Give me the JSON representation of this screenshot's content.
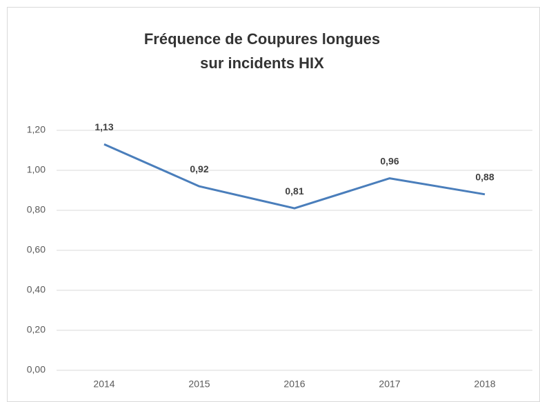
{
  "chart_data": {
    "type": "line",
    "title": [
      "Fréquence de Coupures longues",
      "sur incidents HIX"
    ],
    "categories": [
      "2014",
      "2015",
      "2016",
      "2017",
      "2018"
    ],
    "series": [
      {
        "name": "Fréquence",
        "color": "#4a7ebb",
        "values": [
          1.13,
          0.92,
          0.81,
          0.96,
          0.88
        ],
        "value_labels": [
          "1,13",
          "0,92",
          "0,81",
          "0,96",
          "0,88"
        ]
      }
    ],
    "ylim": [
      0,
      1.2
    ],
    "yticks": [
      {
        "value": 0,
        "label": "0,00"
      },
      {
        "value": 0.2,
        "label": "0,20"
      },
      {
        "value": 0.4,
        "label": "0,40"
      },
      {
        "value": 0.6,
        "label": "0,60"
      },
      {
        "value": 0.8,
        "label": "0,80"
      },
      {
        "value": 1.0,
        "label": "1,00"
      },
      {
        "value": 1.2,
        "label": "1,20"
      }
    ],
    "grid": true
  }
}
